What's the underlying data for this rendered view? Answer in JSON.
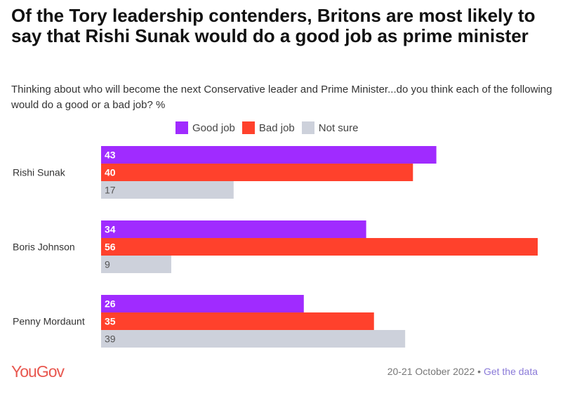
{
  "chart_data": {
    "type": "bar",
    "orientation": "horizontal",
    "title": "Of the Tory leadership contenders, Britons are most likely to say that Rishi Sunak would do a good job as prime minister",
    "subtitle": "Thinking about who will become the next Conservative leader and Prime Minister...do you think each of the following would do a good or a bad job? %",
    "categories": [
      "Rishi Sunak",
      "Boris Johnson",
      "Penny Mordaunt"
    ],
    "series": [
      {
        "name": "Good job",
        "color": "#a02bff",
        "values": [
          43,
          34,
          26
        ]
      },
      {
        "name": "Bad job",
        "color": "#ff412c",
        "values": [
          40,
          56,
          35
        ]
      },
      {
        "name": "Not sure",
        "color": "#cdd1db",
        "values": [
          17,
          9,
          39
        ]
      }
    ],
    "xlim": [
      0,
      56
    ],
    "grid": false,
    "legend_position": "top"
  },
  "footer": {
    "logo": "YouGov",
    "date": "20-21 October 2022",
    "separator": "•",
    "link": "Get the data"
  }
}
